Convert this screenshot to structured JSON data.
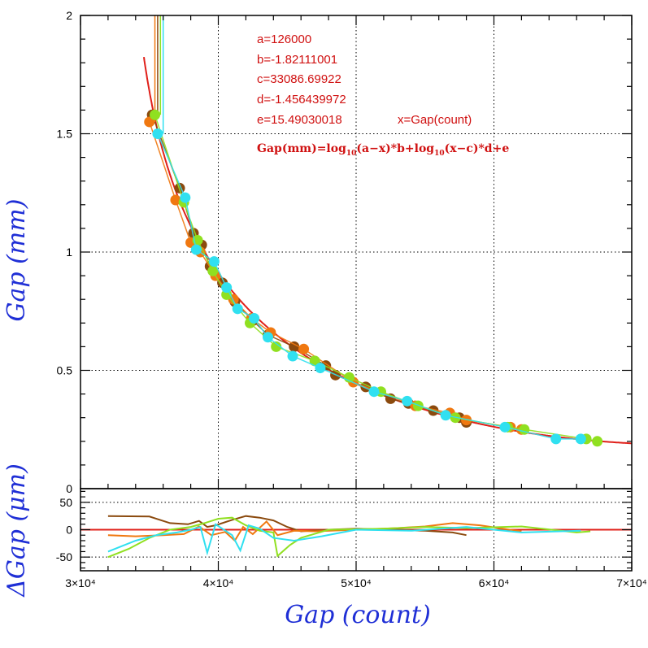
{
  "chart_data": {
    "type": "scatter",
    "xlabel": "Gap (count)",
    "ylabel_top": "Gap (mm)",
    "ylabel_bottom": "ΔGap (μm)",
    "xlim": [
      30000,
      70000
    ],
    "ylim_top": [
      0,
      2
    ],
    "ylim_bottom": [
      -75,
      75
    ],
    "x_ticks": [
      {
        "value": 30000,
        "label": "3×10⁴"
      },
      {
        "value": 40000,
        "label": "4×10⁴"
      },
      {
        "value": 50000,
        "label": "5×10⁴"
      },
      {
        "value": 60000,
        "label": "6×10⁴"
      },
      {
        "value": 70000,
        "label": "7×10⁴"
      }
    ],
    "y_ticks_top": [
      {
        "value": 0,
        "label": "0"
      },
      {
        "value": 0.5,
        "label": "0.5"
      },
      {
        "value": 1,
        "label": "1"
      },
      {
        "value": 1.5,
        "label": "1.5"
      },
      {
        "value": 2,
        "label": "2"
      }
    ],
    "y_ticks_bottom": [
      {
        "value": 50,
        "label": "50"
      },
      {
        "value": 0,
        "label": "0"
      },
      {
        "value": -50,
        "label": "-50"
      }
    ],
    "grid": true,
    "fit": {
      "a": 126000,
      "b": -1.82111001,
      "c": 33086.69922,
      "d": -1.456439972,
      "e": 15.49030018,
      "color": "#e0201a"
    },
    "annotations": {
      "a": "a=126000",
      "b": "b=-1.82111001",
      "c": "c=33086.69922",
      "d": "d=-1.456439972",
      "e": "e=15.49030018",
      "xdef": "x=Gap(count)",
      "formula_parts": [
        "Gap(mm)=log",
        "10",
        "(a−x)*b+log",
        "10",
        "(x−c)*d+e"
      ]
    },
    "series": [
      {
        "color": "#8b4a0e",
        "points": [
          [
            35200,
            1.58
          ],
          [
            37200,
            1.27
          ],
          [
            38200,
            1.08
          ],
          [
            38800,
            1.03
          ],
          [
            39400,
            0.94
          ],
          [
            40300,
            0.87
          ],
          [
            41200,
            0.79
          ],
          [
            42500,
            0.71
          ],
          [
            43600,
            0.65
          ],
          [
            45500,
            0.6
          ],
          [
            47800,
            0.52
          ],
          [
            48500,
            0.48
          ],
          [
            50700,
            0.43
          ],
          [
            52500,
            0.38
          ],
          [
            53800,
            0.36
          ],
          [
            55600,
            0.33
          ],
          [
            57500,
            0.3
          ],
          [
            58000,
            0.28
          ]
        ],
        "residuals": [
          [
            32000,
            25
          ],
          [
            35000,
            24
          ],
          [
            36500,
            12
          ],
          [
            37800,
            10
          ],
          [
            38600,
            16
          ],
          [
            39200,
            5
          ],
          [
            39800,
            8
          ],
          [
            41000,
            18
          ],
          [
            42000,
            25
          ],
          [
            43000,
            22
          ],
          [
            44000,
            17
          ],
          [
            45000,
            5
          ],
          [
            46000,
            -3
          ],
          [
            48000,
            0
          ],
          [
            50000,
            2
          ],
          [
            52500,
            0
          ],
          [
            55000,
            -2
          ],
          [
            57000,
            -5
          ],
          [
            58000,
            -10
          ]
        ]
      },
      {
        "color": "#f07810",
        "points": [
          [
            35000,
            1.55
          ],
          [
            36900,
            1.22
          ],
          [
            38000,
            1.04
          ],
          [
            38700,
            1.0
          ],
          [
            39800,
            0.9
          ],
          [
            41100,
            0.8
          ],
          [
            42400,
            0.72
          ],
          [
            43800,
            0.66
          ],
          [
            46200,
            0.59
          ],
          [
            49800,
            0.45
          ],
          [
            54300,
            0.35
          ],
          [
            56800,
            0.32
          ],
          [
            58000,
            0.29
          ],
          [
            61200,
            0.26
          ],
          [
            62000,
            0.25
          ]
        ],
        "residuals": [
          [
            32000,
            -10
          ],
          [
            34000,
            -12
          ],
          [
            36000,
            -10
          ],
          [
            37500,
            -8
          ],
          [
            38600,
            6
          ],
          [
            39500,
            -10
          ],
          [
            40500,
            -4
          ],
          [
            41200,
            -20
          ],
          [
            41800,
            5
          ],
          [
            42500,
            -8
          ],
          [
            43500,
            15
          ],
          [
            44300,
            -10
          ],
          [
            45500,
            -2
          ],
          [
            47000,
            -3
          ],
          [
            50000,
            0
          ],
          [
            53000,
            3
          ],
          [
            55000,
            6
          ],
          [
            57000,
            12
          ],
          [
            59000,
            8
          ],
          [
            62000,
            -3
          ]
        ]
      },
      {
        "color": "#90e020",
        "points": [
          [
            35400,
            1.58
          ],
          [
            37500,
            1.21
          ],
          [
            38500,
            1.05
          ],
          [
            39600,
            0.92
          ],
          [
            40600,
            0.82
          ],
          [
            42300,
            0.7
          ],
          [
            44200,
            0.6
          ],
          [
            47000,
            0.54
          ],
          [
            49500,
            0.47
          ],
          [
            51800,
            0.41
          ],
          [
            54500,
            0.35
          ],
          [
            57200,
            0.3
          ],
          [
            61000,
            0.26
          ],
          [
            62200,
            0.25
          ],
          [
            66700,
            0.21
          ],
          [
            67500,
            0.2
          ]
        ],
        "residuals": [
          [
            32000,
            -50
          ],
          [
            33500,
            -35
          ],
          [
            35000,
            -15
          ],
          [
            36500,
            0
          ],
          [
            38000,
            5
          ],
          [
            39000,
            12
          ],
          [
            40000,
            20
          ],
          [
            41000,
            22
          ],
          [
            42000,
            8
          ],
          [
            43000,
            -2
          ],
          [
            44000,
            -5
          ],
          [
            44300,
            -48
          ],
          [
            45200,
            -28
          ],
          [
            46000,
            -15
          ],
          [
            48000,
            0
          ],
          [
            52000,
            2
          ],
          [
            55000,
            5
          ],
          [
            58000,
            3
          ],
          [
            62000,
            6
          ],
          [
            66000,
            -5
          ],
          [
            67000,
            -3
          ]
        ]
      },
      {
        "color": "#30e0f0",
        "points": [
          [
            35600,
            1.5
          ],
          [
            37600,
            1.23
          ],
          [
            38400,
            1.01
          ],
          [
            39700,
            0.96
          ],
          [
            40600,
            0.85
          ],
          [
            41400,
            0.76
          ],
          [
            42600,
            0.72
          ],
          [
            43600,
            0.64
          ],
          [
            45400,
            0.56
          ],
          [
            47400,
            0.51
          ],
          [
            51300,
            0.41
          ],
          [
            53700,
            0.37
          ],
          [
            56500,
            0.31
          ],
          [
            60800,
            0.26
          ],
          [
            64500,
            0.21
          ],
          [
            66300,
            0.21
          ]
        ],
        "residuals": [
          [
            32000,
            -40
          ],
          [
            34000,
            -20
          ],
          [
            35500,
            -10
          ],
          [
            37000,
            -5
          ],
          [
            38000,
            0
          ],
          [
            38700,
            5
          ],
          [
            39200,
            -42
          ],
          [
            39800,
            10
          ],
          [
            41000,
            -10
          ],
          [
            41600,
            -38
          ],
          [
            42200,
            8
          ],
          [
            43000,
            2
          ],
          [
            44000,
            -15
          ],
          [
            45500,
            -20
          ],
          [
            47500,
            -12
          ],
          [
            50000,
            0
          ],
          [
            54000,
            -2
          ],
          [
            58000,
            5
          ],
          [
            62000,
            -5
          ],
          [
            66300,
            -2
          ]
        ]
      }
    ]
  }
}
